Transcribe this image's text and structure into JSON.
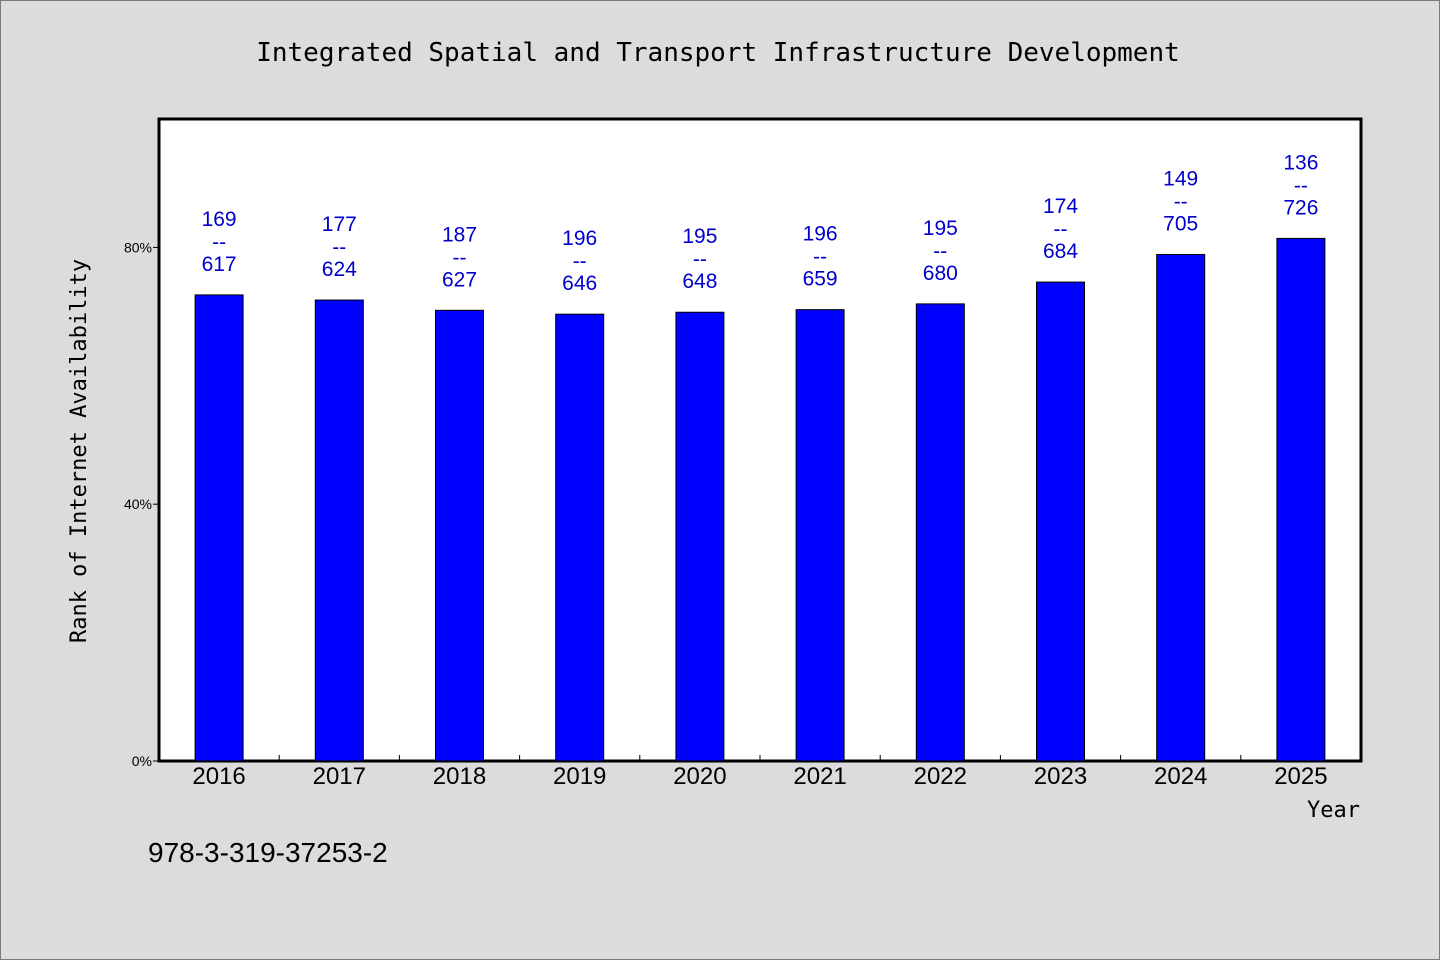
{
  "chart_data": {
    "type": "bar",
    "title": "Integrated Spatial and Transport Infrastructure Development",
    "xlabel": "Year",
    "ylabel": "Rank of Internet Availability",
    "categories": [
      "2016",
      "2017",
      "2018",
      "2019",
      "2020",
      "2021",
      "2022",
      "2023",
      "2024",
      "2025"
    ],
    "values": [
      72.6,
      71.8,
      70.2,
      69.6,
      69.9,
      70.3,
      71.2,
      74.6,
      78.9,
      81.4
    ],
    "data_labels": [
      {
        "top": "169",
        "sep": "--",
        "bottom": "617"
      },
      {
        "top": "177",
        "sep": "--",
        "bottom": "624"
      },
      {
        "top": "187",
        "sep": "--",
        "bottom": "627"
      },
      {
        "top": "196",
        "sep": "--",
        "bottom": "646"
      },
      {
        "top": "195",
        "sep": "--",
        "bottom": "648"
      },
      {
        "top": "196",
        "sep": "--",
        "bottom": "659"
      },
      {
        "top": "195",
        "sep": "--",
        "bottom": "680"
      },
      {
        "top": "174",
        "sep": "--",
        "bottom": "684"
      },
      {
        "top": "149",
        "sep": "--",
        "bottom": "705"
      },
      {
        "top": "136",
        "sep": "--",
        "bottom": "726"
      }
    ],
    "ylim": [
      0,
      100
    ],
    "yticks": [
      {
        "value": 0,
        "label": "0%"
      },
      {
        "value": 40,
        "label": "40%"
      },
      {
        "value": 80,
        "label": "80%"
      }
    ],
    "grid": false,
    "colors": {
      "bar": "#0000ff",
      "bar_outline": "#000000",
      "data_label": "#0000cc",
      "plot_background": "#ffffff",
      "page_background": "#dcdcdc"
    }
  },
  "footer": {
    "isbn": "978-3-319-37253-2"
  }
}
